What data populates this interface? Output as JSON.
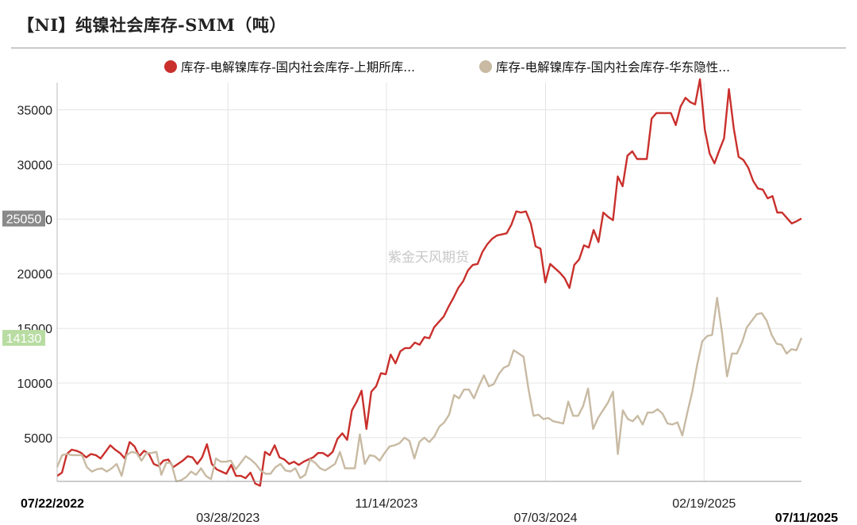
{
  "title": "【NI】纯镍社会库存-SMM（吨）",
  "watermark": "紫金天风期货",
  "chart_data": {
    "type": "line",
    "title": "",
    "xlabel": "",
    "ylabel": "",
    "x_start": "07/22/2022",
    "x_end": "07/11/2025",
    "x_ticks": [
      "07/22/2022",
      "03/28/2023",
      "11/14/2023",
      "07/03/2024",
      "02/19/2025",
      "07/11/2025"
    ],
    "bold_ticks": [
      "07/22/2022",
      "07/11/2025"
    ],
    "y_ticks": [
      5000,
      10000,
      15000,
      20000,
      25000,
      30000,
      35000
    ],
    "ylim": [
      1000,
      37500
    ],
    "grid": true,
    "legend_position": "top",
    "series": [
      {
        "name": "库存-电解镍库存-国内社会库存-上期所库...",
        "color": "#c9302c",
        "last_value": "25050",
        "values": [
          1500,
          1800,
          3500,
          3900,
          3800,
          3600,
          3200,
          3500,
          3400,
          3100,
          3700,
          4300,
          3900,
          3600,
          3100,
          4600,
          4200,
          3300,
          3800,
          3500,
          2600,
          2400,
          2900,
          3000,
          2300,
          2600,
          2900,
          3300,
          3200,
          2600,
          3200,
          4400,
          2600,
          2100,
          1900,
          1700,
          2500,
          1500,
          1500,
          1300,
          1800,
          800,
          600,
          3700,
          3400,
          4300,
          3200,
          3000,
          2600,
          2800,
          2500,
          2800,
          3000,
          3200,
          3600,
          3600,
          3300,
          3700,
          4900,
          5400,
          4800,
          7500,
          8300,
          9300,
          5800,
          9200,
          9700,
          10900,
          10800,
          12600,
          11800,
          12900,
          13200,
          13200,
          13700,
          13500,
          14200,
          14100,
          15100,
          15600,
          16100,
          17000,
          17800,
          18700,
          19300,
          20300,
          20800,
          20900,
          22000,
          22700,
          23200,
          23500,
          23600,
          23700,
          24500,
          25700,
          25600,
          25700,
          24600,
          22500,
          22300,
          19200,
          20900,
          20500,
          20100,
          19600,
          18700,
          20800,
          21300,
          22600,
          22400,
          24000,
          22900,
          25600,
          25200,
          24900,
          28900,
          28000,
          30800,
          31200,
          30500,
          30500,
          30500,
          34200,
          34700,
          34700,
          34700,
          34700,
          33600,
          35300,
          36100,
          35700,
          35500,
          37800,
          33200,
          31000,
          30100,
          31300,
          32400,
          36900,
          33300,
          30700,
          30400,
          29700,
          28500,
          27800,
          27700,
          26900,
          27100,
          25600,
          25600,
          25100,
          24600,
          24800,
          25050
        ]
      },
      {
        "name": "库存-电解镍库存-国内社会库存-华东隐性...",
        "color": "#c8baa3",
        "last_value": "14130",
        "values": [
          2300,
          3400,
          3500,
          3400,
          3400,
          3400,
          2300,
          1900,
          2100,
          2200,
          1900,
          2200,
          2600,
          1500,
          3400,
          3700,
          3600,
          2900,
          3600,
          3600,
          3700,
          1600,
          2700,
          2700,
          1000,
          1100,
          1400,
          1900,
          1600,
          2200,
          1500,
          1200,
          3100,
          2800,
          2800,
          2900,
          2100,
          2700,
          3300,
          3000,
          2600,
          2000,
          1700,
          1700,
          2300,
          2600,
          2000,
          1900,
          2200,
          1300,
          1600,
          3000,
          2700,
          2200,
          2000,
          2300,
          2600,
          3700,
          2200,
          2200,
          2200,
          5300,
          2600,
          3400,
          3300,
          2900,
          3600,
          4200,
          4300,
          4500,
          5000,
          4700,
          3100,
          4600,
          5000,
          4600,
          5100,
          6000,
          6400,
          7100,
          8900,
          8600,
          9400,
          9400,
          8600,
          9700,
          10700,
          9700,
          9900,
          10800,
          11400,
          11600,
          13000,
          12700,
          12400,
          9400,
          7000,
          7100,
          6700,
          6800,
          6500,
          6400,
          6300,
          8300,
          7000,
          7000,
          7900,
          9500,
          5800,
          6800,
          7500,
          8200,
          9200,
          3500,
          7500,
          6700,
          6500,
          7000,
          6200,
          7300,
          7300,
          7600,
          7200,
          6300,
          6200,
          6400,
          5200,
          7300,
          9200,
          11700,
          13800,
          14300,
          14400,
          17800,
          14600,
          10600,
          12700,
          12700,
          13700,
          15100,
          15700,
          16300,
          16400,
          15700,
          14400,
          13600,
          13500,
          12700,
          13100,
          13000,
          14130
        ]
      }
    ]
  }
}
